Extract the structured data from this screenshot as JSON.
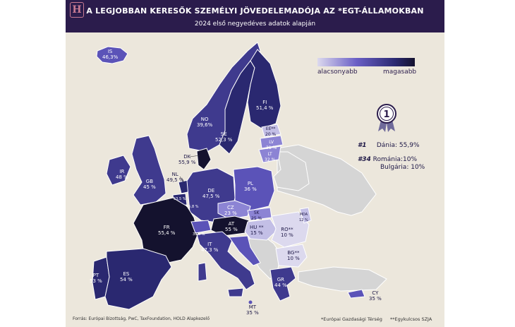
{
  "header": {
    "logo": "H",
    "title": "A LEGJOBBAN KERESŐK SZEMÉLYI JÖVEDELEMADÓJA AZ *EGT-ÁLLAMOKBAN",
    "subtitle": "2024 első negyedéves adatok alapján"
  },
  "legend": {
    "low": "alacsonyabb",
    "high": "magasabb"
  },
  "ranking": {
    "badge": "1",
    "first_rank": "#1",
    "first_text": "Dánia: 55,9%",
    "last_rank": "#34",
    "last_text": "Románia:10%",
    "last_text2": "Bulgária: 10%"
  },
  "countries": {
    "IS": {
      "code": "IS",
      "value": "46,3%"
    },
    "NO": {
      "code": "NO",
      "value": "39,6%"
    },
    "SE": {
      "code": "SE",
      "value": "52,3 %"
    },
    "FI": {
      "code": "FI",
      "value": "51,4 %"
    },
    "EE": {
      "code": "EE**",
      "value": "20 %"
    },
    "LV": {
      "code": "LV",
      "value": "31 %"
    },
    "LT": {
      "code": "LT",
      "value": "32 %"
    },
    "DK": {
      "code": "DK",
      "value": "55,9 %"
    },
    "IR": {
      "code": "IR",
      "value": "48 %"
    },
    "GB": {
      "code": "GB",
      "value": "45 %"
    },
    "NL": {
      "code": "NL",
      "value": "49,5 %"
    },
    "BE": {
      "code": "BE",
      "value": "53,5 %"
    },
    "LU": {
      "code": "LU",
      "value": "45,8 %"
    },
    "DE": {
      "code": "DE",
      "value": "47,5 %"
    },
    "PL": {
      "code": "PL",
      "value": "36 %"
    },
    "CZ": {
      "code": "CZ",
      "value": "23 %"
    },
    "SK": {
      "code": "SK",
      "value": "25 %"
    },
    "AT": {
      "code": "AT",
      "value": "55 %"
    },
    "HU": {
      "code": "HU **",
      "value": "15 %"
    },
    "RO": {
      "code": "RO**",
      "value": "10 %"
    },
    "MD": {
      "code": "MDA",
      "value": "12 %"
    },
    "BG": {
      "code": "BG**",
      "value": "10 %"
    },
    "FR": {
      "code": "FR",
      "value": "55,4 %"
    },
    "CH": {
      "code": "CH",
      "value": "39,5 %"
    },
    "IT": {
      "code": "IT",
      "value": "47,3 %"
    },
    "PT": {
      "code": "PT",
      "value": "53 %"
    },
    "ES": {
      "code": "ES",
      "value": "54 %"
    },
    "GR": {
      "code": "GR",
      "value": "44 %"
    },
    "CY": {
      "code": "CY",
      "value": "35 %"
    },
    "MT": {
      "code": "MT",
      "value": "35 %"
    }
  },
  "colors": {
    "header_bg": "#2b1c4c",
    "darkest": "#14122e",
    "dark": "#2a2870",
    "mid_dark": "#3f3a8e",
    "mid": "#5b53b8",
    "light": "#8c84d4",
    "lightest": "#c3bfe6",
    "non_eea": "#d5d5d5",
    "background": "#ece7dc"
  },
  "footer": {
    "source": "Forrás: Európai Bizottság, PwC, TaxFoundation, HOLD Alapkezelő",
    "note_eea": "*Európai Gazdasági Térség",
    "note_flat": "**Egykulcsos SZJA"
  }
}
